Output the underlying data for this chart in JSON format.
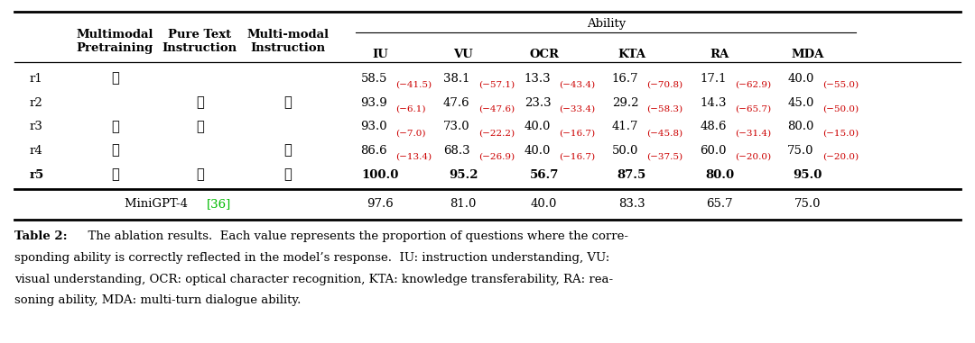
{
  "background_color": "#ffffff",
  "ability_header": "Ability",
  "col_headers_h1": [
    [
      "Multimodal\nPretraining",
      1
    ],
    [
      "Pure Text\nInstruction",
      2
    ],
    [
      "Multi-modal\nInstruction",
      3
    ]
  ],
  "col_headers_h2": [
    "IU",
    "VU",
    "OCR",
    "KTA",
    "RA",
    "MDA"
  ],
  "rows": [
    {
      "name": "r1",
      "checks": [
        true,
        false,
        false
      ],
      "vals": [
        "58.5",
        "38.1",
        "13.3",
        "16.7",
        "17.1",
        "40.0"
      ],
      "diffs": [
        "(−41.5)",
        "(−57.1)",
        "(−43.4)",
        "(−70.8)",
        "(−62.9)",
        "(−55.0)"
      ],
      "bold": false
    },
    {
      "name": "r2",
      "checks": [
        false,
        true,
        true
      ],
      "vals": [
        "93.9",
        "47.6",
        "23.3",
        "29.2",
        "14.3",
        "45.0"
      ],
      "diffs": [
        "(−6.1)",
        "(−47.6)",
        "(−33.4)",
        "(−58.3)",
        "(−65.7)",
        "(−50.0)"
      ],
      "bold": false
    },
    {
      "name": "r3",
      "checks": [
        true,
        true,
        false
      ],
      "vals": [
        "93.0",
        "73.0",
        "40.0",
        "41.7",
        "48.6",
        "80.0"
      ],
      "diffs": [
        "(−7.0)",
        "(−22.2)",
        "(−16.7)",
        "(−45.8)",
        "(−31.4)",
        "(−15.0)"
      ],
      "bold": false
    },
    {
      "name": "r4",
      "checks": [
        true,
        false,
        true
      ],
      "vals": [
        "86.6",
        "68.3",
        "40.0",
        "50.0",
        "60.0",
        "75.0"
      ],
      "diffs": [
        "(−13.4)",
        "(−26.9)",
        "(−16.7)",
        "(−37.5)",
        "(−20.0)",
        "(−20.0)"
      ],
      "bold": false
    },
    {
      "name": "r5",
      "checks": [
        true,
        true,
        true
      ],
      "vals": [
        "100.0",
        "95.2",
        "56.7",
        "87.5",
        "80.0",
        "95.0"
      ],
      "diffs": [
        "",
        "",
        "",
        "",
        "",
        ""
      ],
      "bold": true
    }
  ],
  "minigpt_row": {
    "name_black": "MiniGPT-4 ",
    "name_green": "[36]",
    "vals": [
      "97.6",
      "81.0",
      "40.0",
      "83.3",
      "65.7",
      "75.0"
    ],
    "ref_color": "#00bb00"
  },
  "caption_bold": "Table 2:",
  "caption_rest": "  The ablation results.  Each value represents the proportion of questions where the corre-\nsponding ability is correctly reflected in the model’s response.  IU: instruction understanding, VU:\nvisual understanding, OCR: optical character recognition, KTA: knowledge transferability, RA: rea-\nsoning ability, MDA: multi-turn dialogue ability.",
  "diff_color": "#cc0000",
  "checkmark": "✓",
  "val_fontsize": 9.5,
  "diff_fontsize": 7.5,
  "header_fontsize": 9.5,
  "caption_fontsize": 9.5
}
